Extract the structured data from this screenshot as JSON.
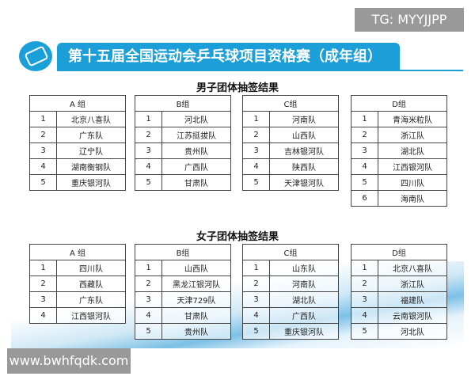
{
  "watermark_top": "TG: MYYJJPP",
  "watermark_bottom": "www.bwhfqdk.com",
  "banner_title": "第十五届全国运动会乒乓球项目资格赛（成年组）",
  "colors": {
    "banner": "#1c9fd8"
  },
  "men": {
    "title": "男子团体抽签结果",
    "groups": [
      {
        "name": "A 组",
        "teams": [
          "北京八喜队",
          "广东队",
          "辽宁队",
          "湖南衡钢队",
          "重庆银河队"
        ]
      },
      {
        "name": "B组",
        "teams": [
          "河北队",
          "江苏挺拔队",
          "贵州队",
          "广西队",
          "甘肃队"
        ]
      },
      {
        "name": "C组",
        "teams": [
          "河南队",
          "山西队",
          "吉林银河队",
          "陕西队",
          "天津银河队"
        ]
      },
      {
        "name": "D组",
        "teams": [
          "青海米粒队",
          "浙江队",
          "湖北队",
          "江西银河队",
          "四川队",
          "海南队"
        ]
      }
    ]
  },
  "women": {
    "title": "女子团体抽签结果",
    "groups": [
      {
        "name": "A 组",
        "teams": [
          "四川队",
          "西藏队",
          "广东队",
          "江西银河队"
        ]
      },
      {
        "name": "B组",
        "teams": [
          "山西队",
          "黑龙江银河队",
          "天津729队",
          "甘肃队",
          "贵州队"
        ]
      },
      {
        "name": "C组",
        "teams": [
          "山东队",
          "河南队",
          "湖北队",
          "广西队",
          "重庆银河队"
        ]
      },
      {
        "name": "D组",
        "teams": [
          "北京八喜队",
          "浙江队",
          "福建队",
          "云南银河队",
          "河北队"
        ]
      }
    ]
  }
}
